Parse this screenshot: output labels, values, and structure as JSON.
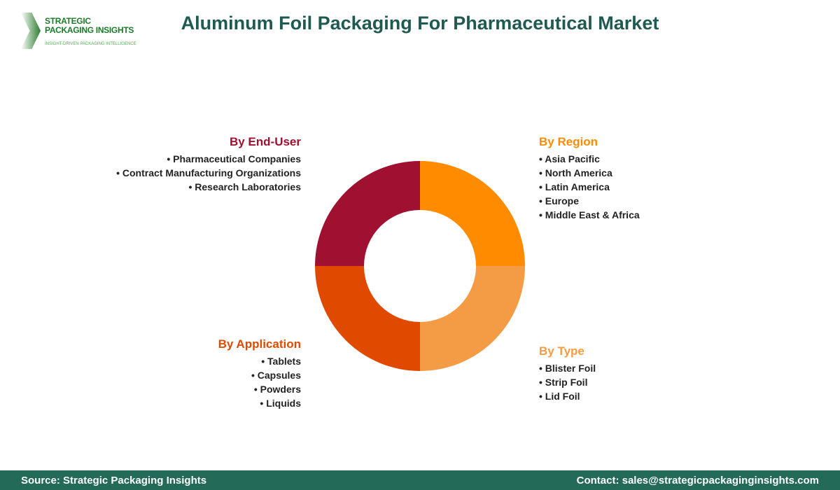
{
  "logo": {
    "line1": "STRATEGIC",
    "line2": "PACKAGING INSIGHTS",
    "tagline": "INSIGHT-DRIVEN PACKAGING INTELLIGENCE"
  },
  "title": "Aluminum Foil Packaging For Pharmaceutical Market",
  "segments": [
    {
      "title": "By Region",
      "color": "#FF8C00",
      "items": [
        "Asia Pacific",
        "North America",
        "Latin America",
        "Europe",
        "Middle East & Africa"
      ]
    },
    {
      "title": "By Type",
      "color": "#F49C45",
      "items": [
        "Blister Foil",
        "Strip Foil",
        "Lid Foil"
      ]
    },
    {
      "title": "By Application",
      "color": "#E04A00",
      "items": [
        "Tablets",
        "Capsules",
        "Powders",
        "Liquids"
      ]
    },
    {
      "title": "By End-User",
      "color": "#A01030",
      "items": [
        "Pharmaceutical Companies",
        "Contract Manufacturing Organizations",
        "Research Laboratories"
      ]
    }
  ],
  "footer": {
    "source": "Source: Strategic Packaging Insights",
    "contact": "Contact: sales@strategicpackaginginsights.com"
  }
}
